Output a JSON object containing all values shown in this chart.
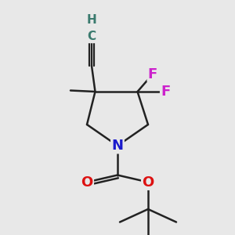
{
  "bg_color": "#e8e8e8",
  "atom_colors": {
    "C": "#3a7a6e",
    "H": "#3a7a6e",
    "N": "#1a1acc",
    "O": "#dd1111",
    "F": "#cc22cc"
  },
  "bond_color": "#222222",
  "bond_width": 1.8,
  "font_size_main": 13,
  "font_size_small": 11
}
